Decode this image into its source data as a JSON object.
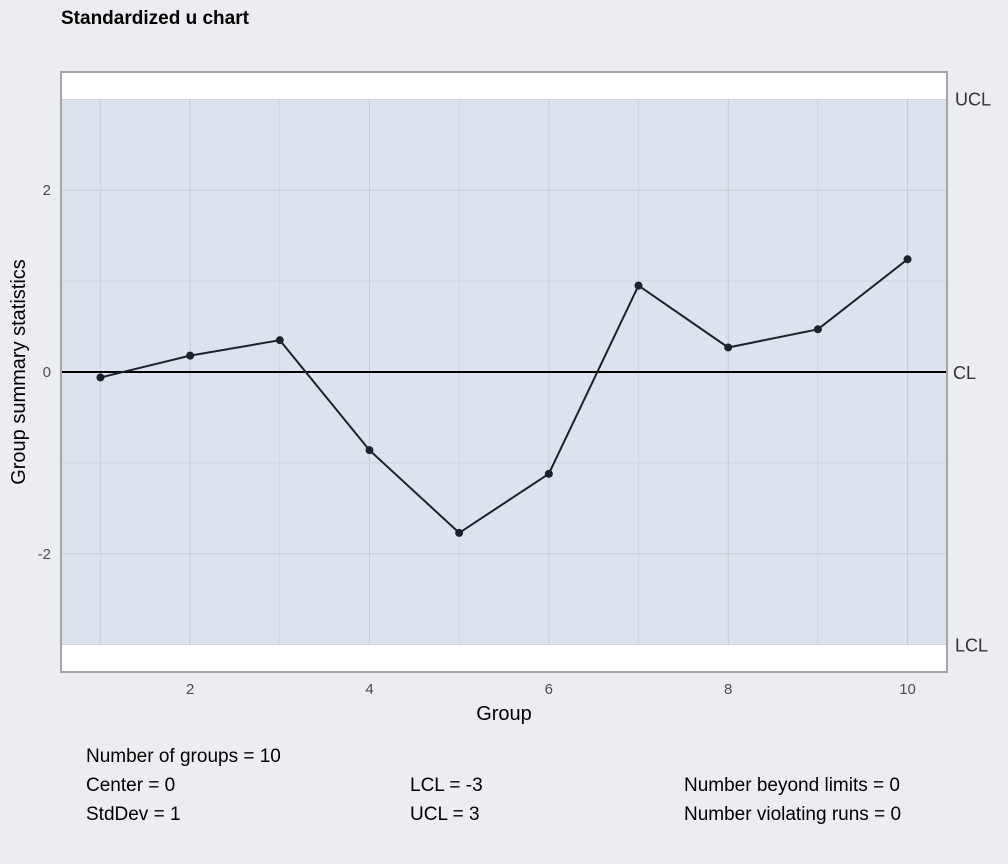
{
  "chart_data": {
    "type": "line",
    "title": "Standardized u chart",
    "xlabel": "Group",
    "ylabel": "Group summary statistics",
    "x": [
      1,
      2,
      3,
      4,
      5,
      6,
      7,
      8,
      9,
      10
    ],
    "values": [
      -0.06,
      0.18,
      0.35,
      -0.86,
      -1.77,
      -1.12,
      0.95,
      0.27,
      0.47,
      1.24
    ],
    "xlim": [
      0.56,
      10.44
    ],
    "ylim": [
      -3.3,
      3.3
    ],
    "x_ticks": [
      2,
      4,
      6,
      8,
      10
    ],
    "y_ticks": [
      -2,
      0,
      2
    ],
    "limits": {
      "UCL": 3,
      "CL": 0,
      "LCL": -3
    },
    "limit_labels": {
      "ucl": "UCL",
      "cl": "CL",
      "lcl": "LCL"
    },
    "grid": true,
    "colors": {
      "band": "#dce3ec",
      "panel": "#ffffff",
      "grid": "#c8ccd3",
      "line": "#1a2230",
      "center": "#000000",
      "frame": "#a6a6a6"
    }
  },
  "stats": {
    "groups": "Number of groups = 10",
    "center": "Center = 0",
    "stddev": "StdDev = 1",
    "lcl": "LCL = -3",
    "ucl": "UCL = 3",
    "beyond": "Number beyond limits = 0",
    "violating": "Number violating runs = 0"
  }
}
